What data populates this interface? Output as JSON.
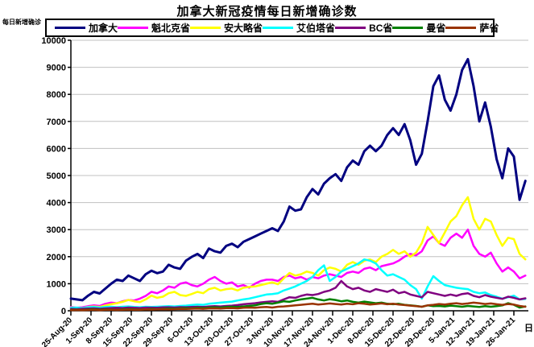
{
  "chart_data": {
    "type": "line",
    "title": "加拿大新冠疫情每日新增确诊数",
    "ylabel": "每日新增确诊",
    "xlabel": "日",
    "ylim": [
      0,
      10000
    ],
    "y_ticks": [
      0,
      1000,
      2000,
      3000,
      4000,
      5000,
      6000,
      7000,
      8000,
      9000,
      10000
    ],
    "grid": true,
    "legend_position": "top",
    "x_tick_labels": [
      "25-Aug-20",
      "1-Sep-20",
      "8-Sep-20",
      "15-Sep-20",
      "22-Sep-20",
      "29-Sep-20",
      "6-Oct-20",
      "13-Oct-20",
      "20-Oct-20",
      "27-Oct-20",
      "3-Nov-20",
      "10-Nov-20",
      "17-Nov-20",
      "24-Nov-20",
      "1-Dec-20",
      "8-Dec-20",
      "15-Dec-20",
      "22-Dec-20",
      "29-Dec-20",
      "5-Jan-21",
      "12-Jan-21",
      "19-Jan-21",
      "26-Jan-21"
    ],
    "x_tick_days": [
      0,
      7,
      14,
      21,
      28,
      35,
      42,
      49,
      56,
      63,
      70,
      77,
      84,
      91,
      98,
      105,
      112,
      119,
      126,
      133,
      140,
      147,
      154
    ],
    "x_days": [
      0,
      2,
      4,
      6,
      8,
      10,
      12,
      14,
      16,
      18,
      20,
      22,
      24,
      26,
      28,
      30,
      32,
      34,
      36,
      38,
      40,
      42,
      44,
      46,
      48,
      50,
      52,
      54,
      56,
      58,
      60,
      62,
      64,
      66,
      68,
      70,
      72,
      74,
      76,
      78,
      80,
      82,
      84,
      86,
      88,
      90,
      92,
      94,
      96,
      98,
      100,
      102,
      104,
      106,
      108,
      110,
      112,
      114,
      116,
      118,
      120,
      122,
      124,
      126,
      128,
      130,
      132,
      134,
      136,
      138,
      140,
      142,
      144,
      146,
      148,
      150,
      152,
      154,
      156,
      158
    ],
    "series": [
      {
        "id": "canada",
        "name": "加拿大",
        "color": "#000080",
        "width": 3,
        "values": [
          450,
          420,
          390,
          560,
          700,
          640,
          820,
          1000,
          1150,
          1100,
          1300,
          1200,
          1100,
          1350,
          1480,
          1390,
          1450,
          1700,
          1600,
          1550,
          1850,
          1990,
          2100,
          1950,
          2300,
          2200,
          2150,
          2400,
          2480,
          2350,
          2550,
          2650,
          2750,
          2850,
          2950,
          3050,
          2950,
          3300,
          3850,
          3700,
          3750,
          4200,
          4500,
          4300,
          4700,
          4900,
          5050,
          4800,
          5300,
          5550,
          5400,
          5900,
          6100,
          5900,
          6100,
          6500,
          6750,
          6500,
          6900,
          6300,
          5400,
          5800,
          7000,
          8300,
          8700,
          7800,
          7400,
          8000,
          8900,
          9300,
          8300,
          7000,
          7700,
          6800,
          5600,
          4900,
          6000,
          5700,
          4100,
          4800
        ]
      },
      {
        "id": "quebec",
        "name": "魁北克省",
        "color": "#FF00FF",
        "width": 2.5,
        "values": [
          140,
          110,
          130,
          170,
          200,
          180,
          260,
          300,
          280,
          350,
          400,
          380,
          450,
          550,
          700,
          650,
          750,
          900,
          850,
          1000,
          1050,
          950,
          900,
          1000,
          1150,
          1250,
          1100,
          1000,
          1050,
          900,
          950,
          850,
          1000,
          1100,
          1150,
          1150,
          1100,
          1250,
          1300,
          1200,
          1250,
          1150,
          1250,
          1200,
          1300,
          1350,
          1300,
          1250,
          1400,
          1450,
          1400,
          1550,
          1600,
          1500,
          1650,
          1700,
          1750,
          1850,
          2000,
          2100,
          2050,
          2200,
          2600,
          2750,
          2500,
          2400,
          2700,
          2850,
          2700,
          3000,
          2400,
          2100,
          2000,
          2150,
          1750,
          1450,
          1600,
          1450,
          1200,
          1300
        ]
      },
      {
        "id": "ontario",
        "name": "安大略省",
        "color": "#FFFF00",
        "width": 2.5,
        "values": [
          120,
          110,
          100,
          140,
          160,
          140,
          200,
          240,
          280,
          330,
          400,
          350,
          320,
          420,
          560,
          480,
          520,
          650,
          700,
          580,
          550,
          620,
          700,
          650,
          800,
          850,
          750,
          800,
          820,
          750,
          850,
          880,
          900,
          950,
          1000,
          1050,
          980,
          1200,
          1400,
          1300,
          1350,
          1450,
          1400,
          1300,
          1500,
          1600,
          1550,
          1450,
          1700,
          1800,
          1700,
          1850,
          1900,
          1800,
          2000,
          2100,
          2250,
          2100,
          2200,
          2000,
          2150,
          2500,
          3100,
          2800,
          2500,
          2900,
          3300,
          3500,
          3900,
          4200,
          3400,
          3000,
          3400,
          3300,
          2800,
          2400,
          2700,
          2650,
          2100,
          1900
        ]
      },
      {
        "id": "alberta",
        "name": "艾伯塔省",
        "color": "#00FFFF",
        "width": 2.5,
        "values": [
          110,
          120,
          100,
          130,
          140,
          120,
          140,
          150,
          130,
          150,
          160,
          140,
          130,
          150,
          140,
          150,
          160,
          170,
          160,
          180,
          190,
          210,
          230,
          220,
          260,
          280,
          300,
          320,
          340,
          380,
          420,
          450,
          500,
          550,
          600,
          620,
          650,
          750,
          820,
          900,
          1000,
          1100,
          1250,
          1500,
          1680,
          1100,
          1250,
          1450,
          1550,
          1650,
          1750,
          1900,
          1850,
          1750,
          1500,
          1300,
          1350,
          1250,
          1150,
          950,
          800,
          450,
          900,
          1280,
          1100,
          950,
          900,
          850,
          820,
          800,
          700,
          650,
          680,
          580,
          520,
          450,
          500,
          560,
          420,
          440
        ]
      },
      {
        "id": "bc",
        "name": "BC省",
        "color": "#800080",
        "width": 2.5,
        "values": [
          70,
          60,
          75,
          80,
          90,
          75,
          90,
          100,
          110,
          100,
          120,
          110,
          100,
          120,
          115,
          110,
          125,
          130,
          120,
          135,
          130,
          140,
          150,
          140,
          160,
          170,
          160,
          180,
          190,
          210,
          240,
          260,
          280,
          310,
          330,
          350,
          330,
          420,
          500,
          480,
          550,
          600,
          580,
          620,
          700,
          750,
          850,
          1100,
          900,
          800,
          850,
          750,
          700,
          800,
          750,
          700,
          780,
          650,
          700,
          600,
          550,
          500,
          700,
          650,
          600,
          550,
          600,
          550,
          620,
          650,
          550,
          500,
          580,
          520,
          480,
          440,
          520,
          480,
          420,
          460
        ]
      },
      {
        "id": "manitoba",
        "name": "曼省",
        "color": "#008000",
        "width": 2.5,
        "values": [
          35,
          40,
          30,
          45,
          50,
          40,
          55,
          45,
          40,
          50,
          60,
          50,
          45,
          55,
          65,
          60,
          70,
          80,
          75,
          90,
          100,
          90,
          110,
          100,
          120,
          130,
          120,
          140,
          150,
          140,
          160,
          180,
          200,
          250,
          280,
          260,
          300,
          350,
          330,
          380,
          420,
          450,
          480,
          420,
          380,
          430,
          400,
          350,
          380,
          330,
          300,
          340,
          310,
          280,
          300,
          260,
          240,
          260,
          220,
          200,
          180,
          150,
          200,
          170,
          180,
          160,
          190,
          170,
          150,
          180,
          160,
          140,
          170,
          150,
          170,
          200,
          280,
          220,
          120,
          160
        ]
      },
      {
        "id": "saskatchewan",
        "name": "萨省",
        "color": "#993300",
        "width": 2.5,
        "values": [
          25,
          30,
          20,
          30,
          35,
          25,
          35,
          40,
          30,
          40,
          45,
          35,
          40,
          50,
          45,
          50,
          60,
          55,
          60,
          70,
          65,
          75,
          80,
          70,
          85,
          90,
          80,
          95,
          100,
          90,
          110,
          120,
          110,
          130,
          140,
          120,
          150,
          160,
          180,
          200,
          220,
          240,
          260,
          230,
          250,
          270,
          250,
          230,
          260,
          240,
          280,
          260,
          230,
          250,
          270,
          240,
          260,
          230,
          210,
          190,
          170,
          150,
          200,
          220,
          250,
          230,
          260,
          280,
          250,
          270,
          300,
          280,
          250,
          270,
          240,
          220,
          250,
          230,
          180,
          150
        ]
      }
    ],
    "colors": {
      "gridline": "#c0c0c0",
      "axis": "#000000",
      "background": "#ffffff"
    }
  }
}
